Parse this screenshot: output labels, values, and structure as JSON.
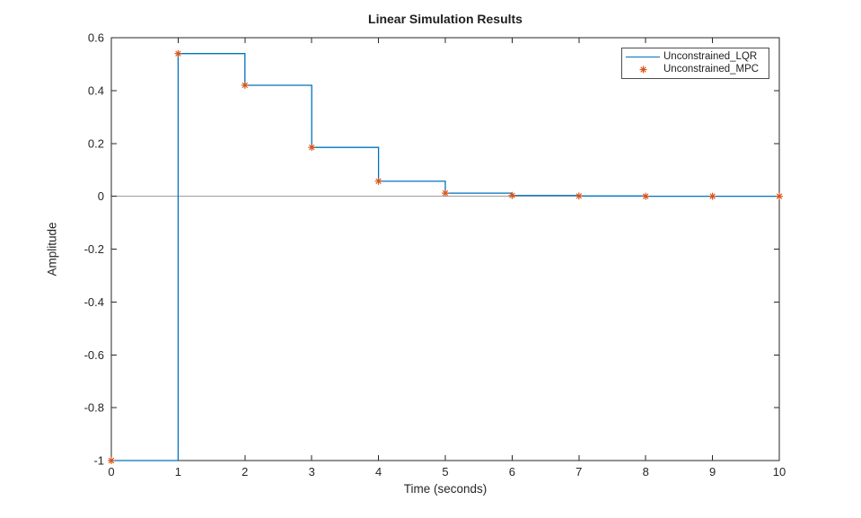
{
  "figure": {
    "title": "Linear Simulation Results",
    "xlabel": "Time (seconds)",
    "ylabel": "Amplitude"
  },
  "legend": {
    "entries": [
      {
        "label": "Unconstrained_LQR",
        "marker": "line"
      },
      {
        "label": "Unconstrained_MPC",
        "marker": "asterisk"
      }
    ]
  },
  "colors": {
    "lqr_line": "#0072BD",
    "mpc_marker": "#D95319",
    "zero_line": "#9E9E9E",
    "axes": "#262626",
    "tick_text": "#262626"
  },
  "chart_data": {
    "type": "line",
    "title": "Linear Simulation Results",
    "xlabel": "Time (seconds)",
    "ylabel": "Amplitude",
    "xlim": [
      0,
      10
    ],
    "ylim": [
      -1,
      0.6
    ],
    "x_ticks": [
      0,
      1,
      2,
      3,
      4,
      5,
      6,
      7,
      8,
      9,
      10
    ],
    "x_tick_labels": [
      "0",
      "1",
      "2",
      "3",
      "4",
      "5",
      "6",
      "7",
      "8",
      "9",
      "10"
    ],
    "y_ticks": [
      -1,
      -0.8,
      -0.6,
      -0.4,
      -0.2,
      0,
      0.2,
      0.4,
      0.6
    ],
    "y_tick_labels": [
      "-1",
      "-0.8",
      "-0.6",
      "-0.4",
      "-0.2",
      "0",
      "0.2",
      "0.4",
      "0.6"
    ],
    "grid": false,
    "box": true,
    "zero_line": true,
    "legend_position": "northeast",
    "x": [
      0,
      1,
      2,
      3,
      4,
      5,
      6,
      7,
      8,
      9,
      10
    ],
    "series": [
      {
        "name": "Unconstrained_LQR",
        "style": "staircase",
        "color": "#0072BD",
        "values": [
          -1,
          0.54,
          0.42,
          0.185,
          0.057,
          0.012,
          0.003,
          0.001,
          0,
          0,
          0
        ]
      },
      {
        "name": "Unconstrained_MPC",
        "style": "asterisk-markers",
        "color": "#D95319",
        "values": [
          -1,
          0.54,
          0.42,
          0.185,
          0.057,
          0.012,
          0.003,
          0.001,
          0,
          0,
          0
        ]
      }
    ]
  }
}
